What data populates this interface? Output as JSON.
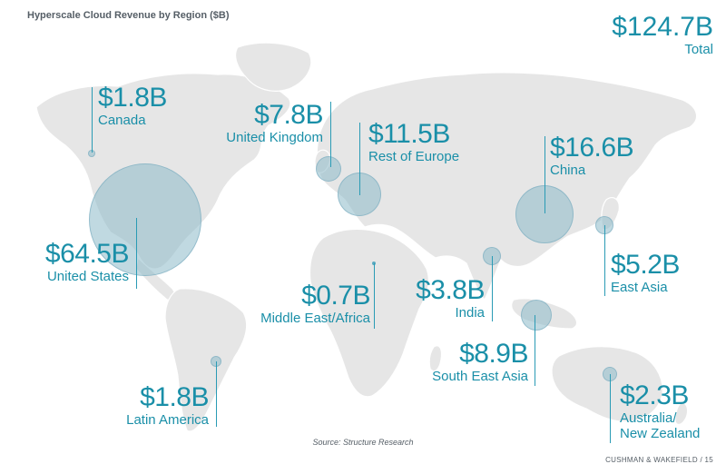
{
  "title": "Hyperscale Cloud Revenue by Region ($B)",
  "total": {
    "value": "$124.7B",
    "label": "Total"
  },
  "source": "Source: Structure Research",
  "footer": "CUSHMAN & WAKEFIELD / 15",
  "colors": {
    "accent": "#1a8fa8",
    "map": "#e6e6e6",
    "bubble": "#8cb9c8"
  },
  "regions": [
    {
      "id": "canada",
      "value": "$1.8B",
      "label": "Canada",
      "revenue": 1.8
    },
    {
      "id": "united-kingdom",
      "value": "$7.8B",
      "label": "United Kingdom",
      "revenue": 7.8
    },
    {
      "id": "rest-of-europe",
      "value": "$11.5B",
      "label": "Rest of Europe",
      "revenue": 11.5
    },
    {
      "id": "china",
      "value": "$16.6B",
      "label": "China",
      "revenue": 16.6
    },
    {
      "id": "united-states",
      "value": "$64.5B",
      "label": "United States",
      "revenue": 64.5
    },
    {
      "id": "middle-east-africa",
      "value": "$0.7B",
      "label": "Middle East/Africa",
      "revenue": 0.7
    },
    {
      "id": "india",
      "value": "$3.8B",
      "label": "India",
      "revenue": 3.8
    },
    {
      "id": "east-asia",
      "value": "$5.2B",
      "label": "East Asia",
      "revenue": 5.2
    },
    {
      "id": "south-east-asia",
      "value": "$8.9B",
      "label": "South East Asia",
      "revenue": 8.9
    },
    {
      "id": "latin-america",
      "value": "$1.8B",
      "label": "Latin America",
      "revenue": 1.8
    },
    {
      "id": "australia-nz",
      "value": "$2.3B",
      "label": "Australia/\nNew Zealand",
      "revenue": 2.3
    }
  ]
}
